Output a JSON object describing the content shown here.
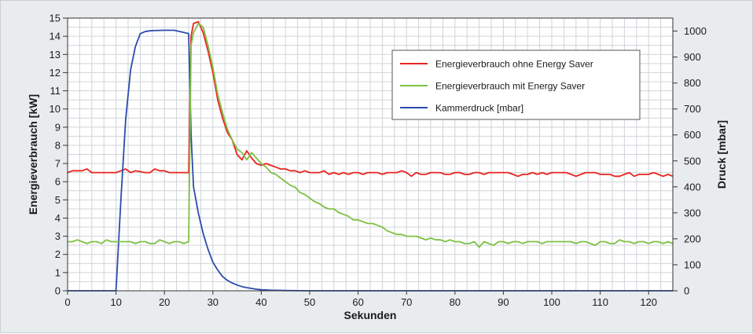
{
  "chart_data": {
    "type": "line",
    "title": "",
    "xlabel": "Sekunden",
    "ylabel": "Energieverbrauch [kW]",
    "y2label": "Druck [mbar]",
    "xlim": [
      0,
      125
    ],
    "ylim": [
      0,
      15
    ],
    "y2lim": [
      0,
      1050
    ],
    "xticks": [
      0,
      10,
      20,
      30,
      40,
      50,
      60,
      70,
      80,
      90,
      100,
      110,
      120
    ],
    "yticks": [
      0,
      1,
      2,
      3,
      4,
      5,
      6,
      7,
      8,
      9,
      10,
      11,
      12,
      13,
      14,
      15
    ],
    "y2ticks": [
      0,
      100,
      200,
      300,
      400,
      500,
      600,
      700,
      800,
      900,
      1000
    ],
    "grid": true,
    "legend_position": "top-right",
    "series": [
      {
        "name": "Energieverbrauch ohne Energy Saver",
        "color": "#e8251f",
        "axis": "left",
        "x": [
          0,
          1,
          3,
          4,
          5,
          7,
          9,
          10,
          11,
          12,
          13,
          14,
          16,
          17,
          18,
          19,
          20,
          21,
          22,
          23,
          24,
          25,
          25.5,
          26,
          27,
          28,
          29,
          30,
          31,
          32,
          33,
          34,
          35,
          36,
          37,
          38,
          39,
          40,
          41,
          42,
          43,
          44,
          45,
          46,
          47,
          48,
          49,
          50,
          51,
          52,
          53,
          54,
          55,
          56,
          57,
          58,
          59,
          60,
          61,
          62,
          63,
          64,
          65,
          66,
          67,
          68,
          69,
          70,
          71,
          72,
          73,
          74,
          75,
          76,
          77,
          78,
          79,
          80,
          81,
          82,
          83,
          84,
          85,
          86,
          87,
          88,
          89,
          90,
          91,
          92,
          93,
          94,
          95,
          96,
          97,
          98,
          99,
          100,
          101,
          102,
          103,
          104,
          105,
          106,
          107,
          108,
          109,
          110,
          111,
          112,
          113,
          114,
          115,
          116,
          117,
          118,
          119,
          120,
          121,
          122,
          123,
          124,
          125
        ],
        "y": [
          6.5,
          6.6,
          6.6,
          6.7,
          6.5,
          6.5,
          6.5,
          6.5,
          6.6,
          6.7,
          6.5,
          6.6,
          6.5,
          6.5,
          6.7,
          6.6,
          6.6,
          6.5,
          6.5,
          6.5,
          6.5,
          6.5,
          14.0,
          14.7,
          14.8,
          14.2,
          13.2,
          12.0,
          10.5,
          9.5,
          8.7,
          8.3,
          7.5,
          7.2,
          7.7,
          7.3,
          7.0,
          6.9,
          7.0,
          6.9,
          6.8,
          6.7,
          6.7,
          6.6,
          6.6,
          6.5,
          6.6,
          6.5,
          6.5,
          6.5,
          6.6,
          6.4,
          6.5,
          6.4,
          6.5,
          6.4,
          6.5,
          6.5,
          6.4,
          6.5,
          6.5,
          6.5,
          6.4,
          6.5,
          6.5,
          6.5,
          6.6,
          6.5,
          6.3,
          6.5,
          6.4,
          6.4,
          6.5,
          6.5,
          6.5,
          6.4,
          6.4,
          6.5,
          6.5,
          6.4,
          6.4,
          6.5,
          6.5,
          6.4,
          6.5,
          6.5,
          6.5,
          6.5,
          6.5,
          6.4,
          6.3,
          6.4,
          6.4,
          6.5,
          6.4,
          6.5,
          6.4,
          6.5,
          6.5,
          6.5,
          6.5,
          6.4,
          6.3,
          6.4,
          6.5,
          6.5,
          6.5,
          6.4,
          6.4,
          6.4,
          6.3,
          6.3,
          6.4,
          6.5,
          6.3,
          6.4,
          6.4,
          6.4,
          6.5,
          6.4,
          6.3,
          6.4,
          6.3
        ]
      },
      {
        "name": "Energieverbrauch mit Energy Saver",
        "color": "#7cc242",
        "axis": "left",
        "x": [
          0,
          1,
          2,
          3,
          4,
          5,
          6,
          7,
          8,
          9,
          10,
          11,
          12,
          13,
          14,
          15,
          16,
          17,
          18,
          19,
          20,
          21,
          22,
          23,
          24,
          25,
          25.5,
          26,
          27,
          28,
          29,
          30,
          31,
          32,
          33,
          34,
          35,
          36,
          37,
          38,
          39,
          40,
          41,
          42,
          43,
          44,
          45,
          46,
          47,
          48,
          49,
          50,
          51,
          52,
          53,
          54,
          55,
          56,
          57,
          58,
          59,
          60,
          61,
          62,
          63,
          64,
          65,
          66,
          67,
          68,
          69,
          70,
          71,
          72,
          73,
          74,
          75,
          76,
          77,
          78,
          79,
          80,
          81,
          82,
          83,
          84,
          85,
          86,
          87,
          88,
          89,
          90,
          91,
          92,
          93,
          94,
          95,
          96,
          97,
          98,
          99,
          100,
          101,
          102,
          103,
          104,
          105,
          106,
          107,
          108,
          109,
          110,
          111,
          112,
          113,
          114,
          115,
          116,
          117,
          118,
          119,
          120,
          121,
          122,
          123,
          124,
          125
        ],
        "y": [
          2.7,
          2.7,
          2.8,
          2.7,
          2.6,
          2.7,
          2.7,
          2.6,
          2.8,
          2.7,
          2.7,
          2.7,
          2.7,
          2.7,
          2.6,
          2.7,
          2.7,
          2.6,
          2.6,
          2.8,
          2.7,
          2.6,
          2.7,
          2.7,
          2.6,
          2.7,
          13.5,
          14.2,
          14.7,
          14.5,
          13.5,
          12.3,
          10.8,
          9.8,
          8.9,
          8.3,
          7.8,
          7.6,
          7.2,
          7.6,
          7.3,
          7.0,
          6.8,
          6.5,
          6.4,
          6.2,
          6.0,
          5.8,
          5.7,
          5.4,
          5.3,
          5.1,
          4.9,
          4.8,
          4.6,
          4.5,
          4.5,
          4.3,
          4.2,
          4.1,
          3.9,
          3.9,
          3.8,
          3.7,
          3.7,
          3.6,
          3.5,
          3.3,
          3.2,
          3.1,
          3.1,
          3.0,
          3.0,
          3.0,
          2.9,
          2.8,
          2.9,
          2.8,
          2.8,
          2.7,
          2.8,
          2.7,
          2.7,
          2.6,
          2.6,
          2.7,
          2.4,
          2.7,
          2.6,
          2.5,
          2.7,
          2.7,
          2.6,
          2.7,
          2.7,
          2.6,
          2.7,
          2.7,
          2.7,
          2.6,
          2.7,
          2.7,
          2.7,
          2.7,
          2.7,
          2.7,
          2.6,
          2.7,
          2.7,
          2.6,
          2.5,
          2.7,
          2.7,
          2.6,
          2.6,
          2.8,
          2.7,
          2.7,
          2.6,
          2.7,
          2.7,
          2.6,
          2.7,
          2.7,
          2.6,
          2.7,
          2.6
        ]
      },
      {
        "name": "Kammerdruck [mbar]",
        "color": "#2a4cad",
        "axis": "right",
        "x": [
          0,
          5,
          9.8,
          10,
          11,
          12,
          13,
          14,
          15,
          16,
          17,
          18,
          20,
          22,
          24,
          25,
          25.5,
          26,
          27,
          28,
          29,
          30,
          31,
          32,
          33,
          34,
          35,
          36,
          37,
          38,
          39,
          40,
          42,
          45,
          50,
          60,
          80,
          100,
          125
        ],
        "y": [
          0,
          0,
          0,
          0,
          350,
          660,
          850,
          940,
          990,
          998,
          1001,
          1002,
          1003,
          1003,
          995,
          990,
          600,
          400,
          300,
          220,
          160,
          110,
          80,
          55,
          40,
          30,
          22,
          16,
          12,
          9,
          6,
          4,
          2,
          1,
          0,
          0,
          0,
          0,
          0
        ]
      }
    ]
  }
}
